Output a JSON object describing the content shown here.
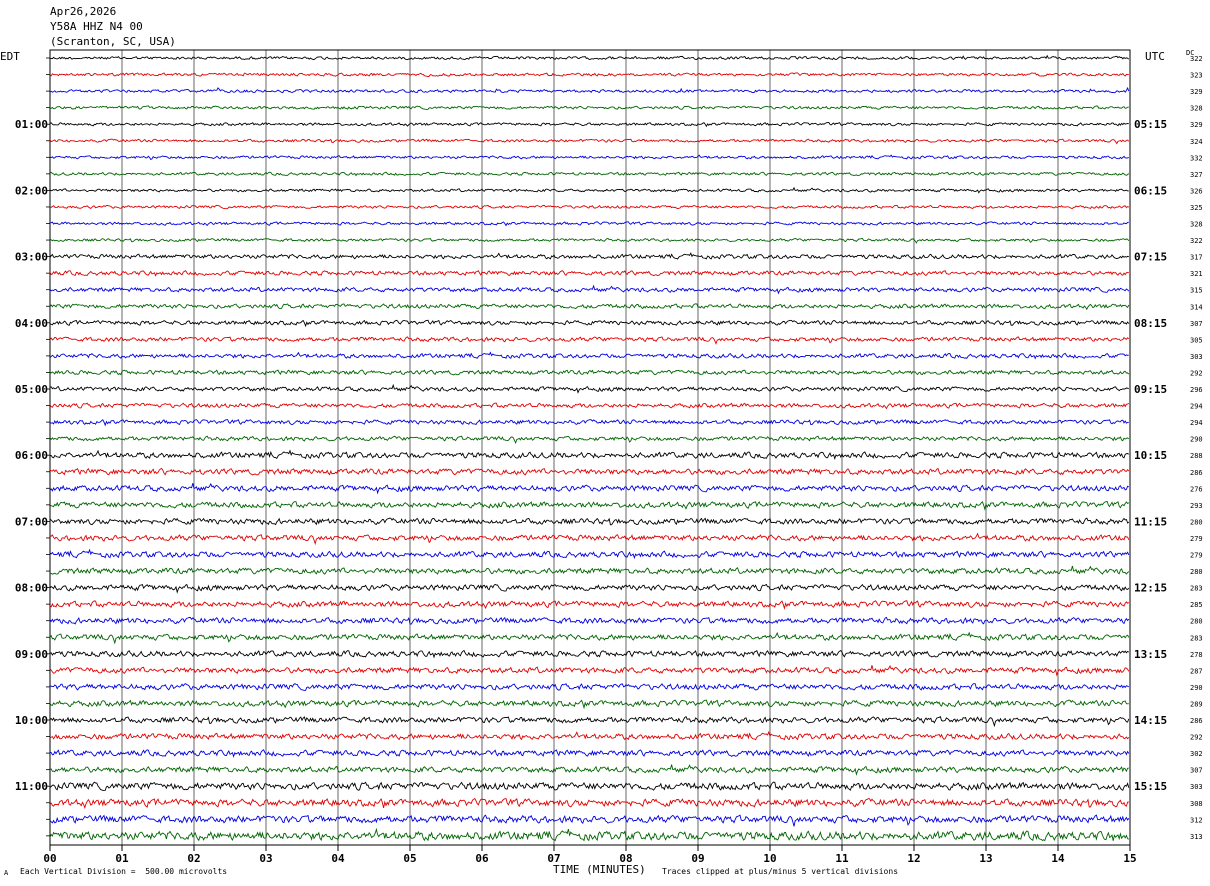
{
  "header": {
    "date": "Apr26,2026",
    "station": "Y58A HHZ N4 00",
    "location": "(Scranton, SC, USA)"
  },
  "left_zone": "EDT",
  "right_zone": "UTC",
  "dc_label": "DC",
  "footer": {
    "scale_note": "Each Vertical Division =  500.00 microvolts",
    "clip_note": "Traces clipped at plus/minus 5 vertical divisions",
    "corner_mark": "A"
  },
  "colors": {
    "trace_cycle": [
      "#000000",
      "#e00000",
      "#0000e0",
      "#006400"
    ],
    "grid": "#000000"
  },
  "chart_data": {
    "type": "line",
    "title": "",
    "xlabel": "TIME (MINUTES)",
    "xlim": [
      0,
      15
    ],
    "x_ticks": [
      "00",
      "01",
      "02",
      "03",
      "04",
      "05",
      "06",
      "07",
      "08",
      "09",
      "10",
      "11",
      "12",
      "13",
      "14",
      "15"
    ],
    "left_hour_labels": [
      "01:00",
      "02:00",
      "03:00",
      "04:00",
      "05:00",
      "06:00",
      "07:00",
      "08:00",
      "09:00",
      "10:00",
      "11:00"
    ],
    "right_hour_labels": [
      "05:15",
      "06:15",
      "07:15",
      "08:15",
      "09:15",
      "10:15",
      "11:15",
      "12:15",
      "13:15",
      "14:15",
      "15:15"
    ],
    "trace_dc_offsets": [
      322,
      323,
      329,
      328,
      329,
      324,
      332,
      327,
      326,
      325,
      328,
      322,
      317,
      321,
      315,
      314,
      307,
      305,
      303,
      292,
      296,
      294,
      294,
      290,
      288,
      286,
      276,
      293,
      280,
      279,
      279,
      280,
      283,
      285,
      280,
      283,
      278,
      287,
      290,
      289,
      286,
      292,
      302,
      307,
      303,
      308,
      312,
      313
    ],
    "trace_amplitudes": [
      2,
      2,
      2,
      2,
      2,
      2,
      2,
      2,
      2,
      2,
      2,
      2,
      3,
      3,
      3,
      3,
      3,
      3,
      3,
      3,
      3,
      3,
      3,
      3,
      4,
      4,
      4,
      4,
      4,
      4,
      4,
      4,
      4,
      4,
      4,
      4,
      4,
      4,
      4,
      4,
      4,
      4,
      4,
      4,
      5,
      5,
      5,
      6
    ]
  }
}
